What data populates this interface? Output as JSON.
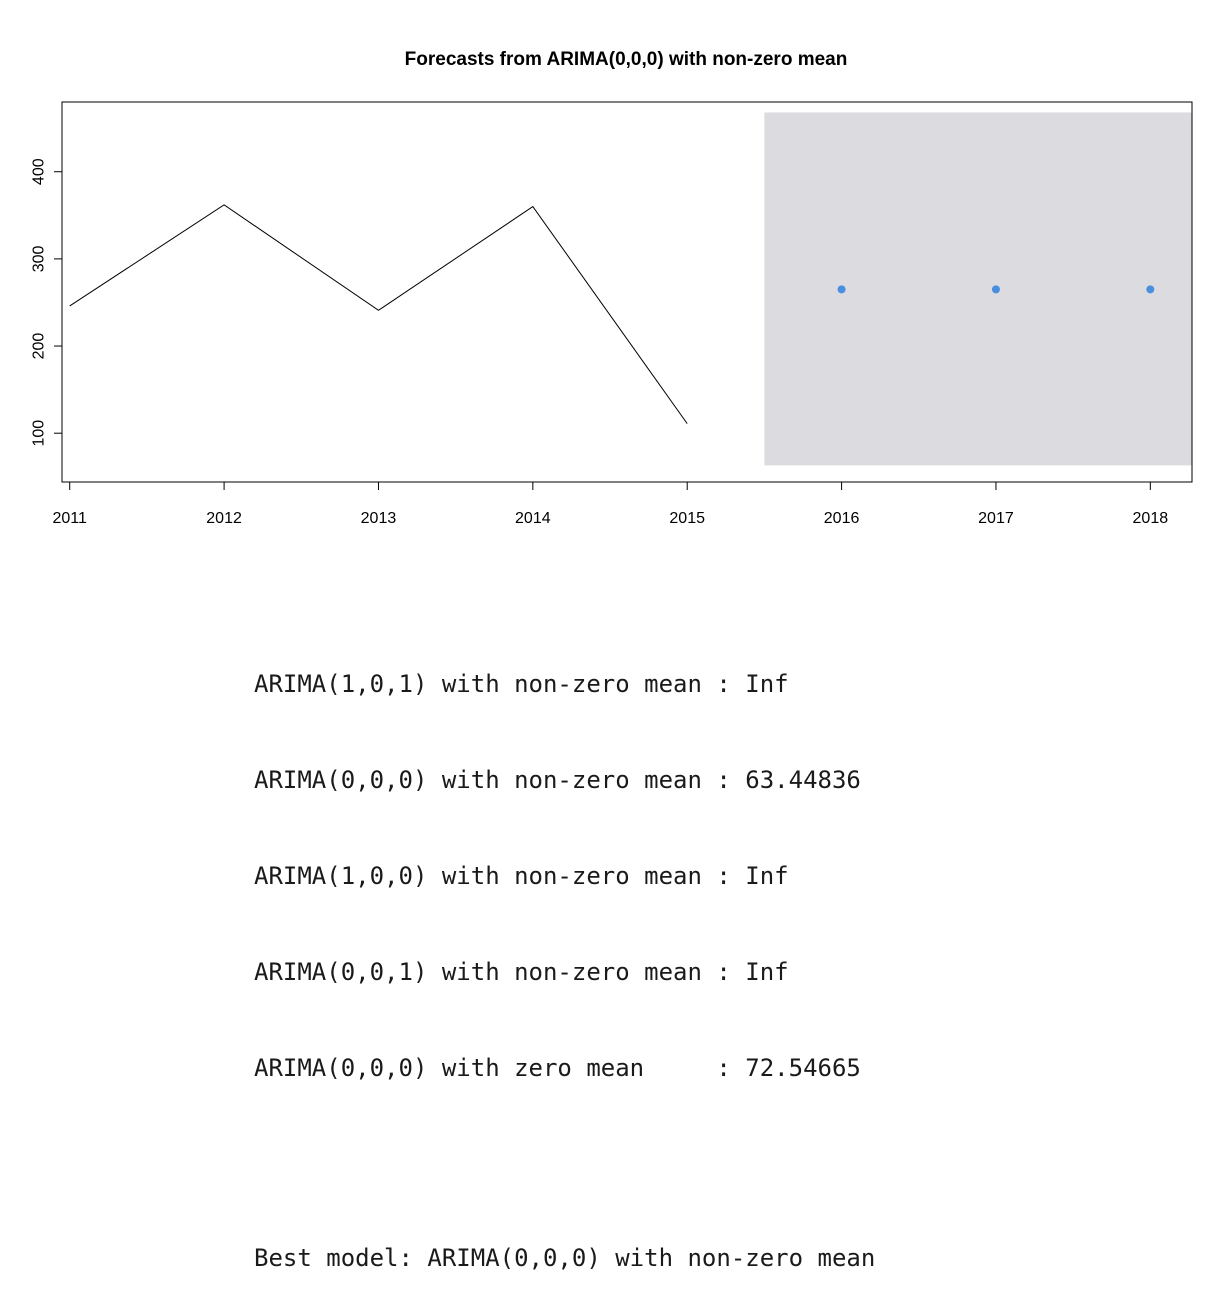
{
  "chart_data": {
    "type": "line",
    "title": "Forecasts from ARIMA(0,0,0) with non-zero mean",
    "xlabel": "",
    "ylabel": "",
    "xlim": [
      2010.95,
      2018.27
    ],
    "ylim": [
      44,
      480
    ],
    "x_ticks": [
      2011,
      2012,
      2013,
      2014,
      2015,
      2016,
      2017,
      2018
    ],
    "y_ticks": [
      100,
      200,
      300,
      400
    ],
    "series": [
      {
        "name": "observed",
        "x": [
          2011,
          2012,
          2013,
          2014,
          2015
        ],
        "values": [
          246,
          362,
          241,
          360,
          111
        ],
        "color": "#000000"
      },
      {
        "name": "forecast",
        "x": [
          2016,
          2017,
          2018
        ],
        "values": [
          265,
          265,
          265
        ],
        "color": "#4a8ee0"
      }
    ],
    "interval": {
      "x_start": 2015.5,
      "x_end": 2018.27,
      "lower": 63,
      "upper": 468,
      "color": "#dcdce0"
    },
    "grid": false
  },
  "console": {
    "lines": [
      "ARIMA(1,0,1) with non-zero mean : Inf",
      "ARIMA(0,0,0) with non-zero mean : 63.44836",
      "ARIMA(1,0,0) with non-zero mean : Inf",
      "ARIMA(0,0,1) with non-zero mean : Inf",
      "ARIMA(0,0,0) with zero mean     : 72.54665"
    ],
    "best_model": "Best model: ARIMA(0,0,0) with non-zero mean"
  }
}
